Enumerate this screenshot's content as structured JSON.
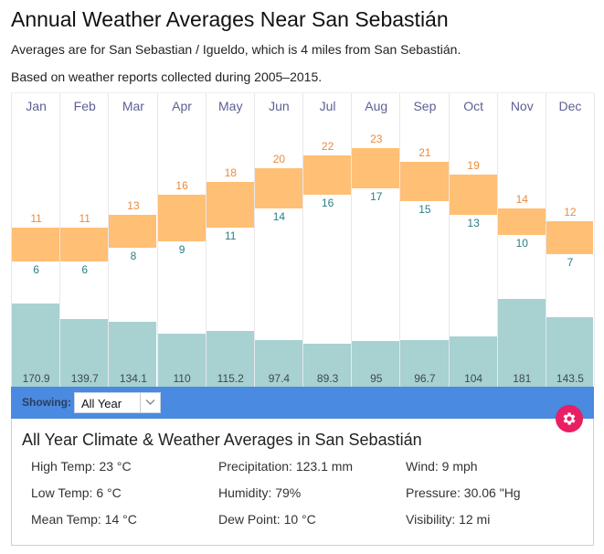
{
  "header": {
    "title": "Annual Weather Averages Near San Sebastián",
    "subtitle_station": "Averages are for San Sebastian / Igueldo, which is 4 miles from San Sebastián.",
    "subtitle_period": "Based on weather reports collected during 2005–2015."
  },
  "colors": {
    "temp_bar": "#ffbf75",
    "high_label": "#ec8a3c",
    "low_label": "#2b7f86",
    "precip_bar": "#a8d1d1",
    "month_label": "#5d6094",
    "showing_bar": "#4a8ae0",
    "gear_button": "#e91e63"
  },
  "chart_data": {
    "type": "bar",
    "title": "Annual Weather Averages Near San Sebastián",
    "categories": [
      "Jan",
      "Feb",
      "Mar",
      "Apr",
      "May",
      "Jun",
      "Jul",
      "Aug",
      "Sep",
      "Oct",
      "Nov",
      "Dec"
    ],
    "series": [
      {
        "name": "High Temp (°C)",
        "values": [
          11,
          11,
          13,
          16,
          18,
          20,
          22,
          23,
          21,
          19,
          14,
          12
        ]
      },
      {
        "name": "Low Temp (°C)",
        "values": [
          6,
          6,
          8,
          9,
          11,
          14,
          16,
          17,
          15,
          13,
          10,
          7
        ]
      },
      {
        "name": "Precipitation (mm)",
        "values": [
          "170.9",
          "139.7",
          "134.1",
          "110",
          "115.2",
          "97.4",
          "89.3",
          "95",
          "96.7",
          "104",
          "181",
          "143.5"
        ]
      }
    ],
    "xlabel": "",
    "ylabel": "",
    "grid": false
  },
  "filter": {
    "label": "Showing:",
    "selected": "All Year"
  },
  "summary": {
    "title": "All Year Climate & Weather Averages in San Sebastián",
    "stats": [
      [
        "High Temp: 23 °C",
        "Precipitation: 123.1 mm",
        "Wind: 9 mph"
      ],
      [
        "Low Temp: 6 °C",
        "Humidity: 79%",
        "Pressure: 30.06 \"Hg"
      ],
      [
        "Mean Temp: 14 °C",
        "Dew Point: 10 °C",
        "Visibility: 12 mi"
      ]
    ]
  },
  "icons": {
    "settings": "gear-icon",
    "dropdown": "chevron-down-icon"
  }
}
